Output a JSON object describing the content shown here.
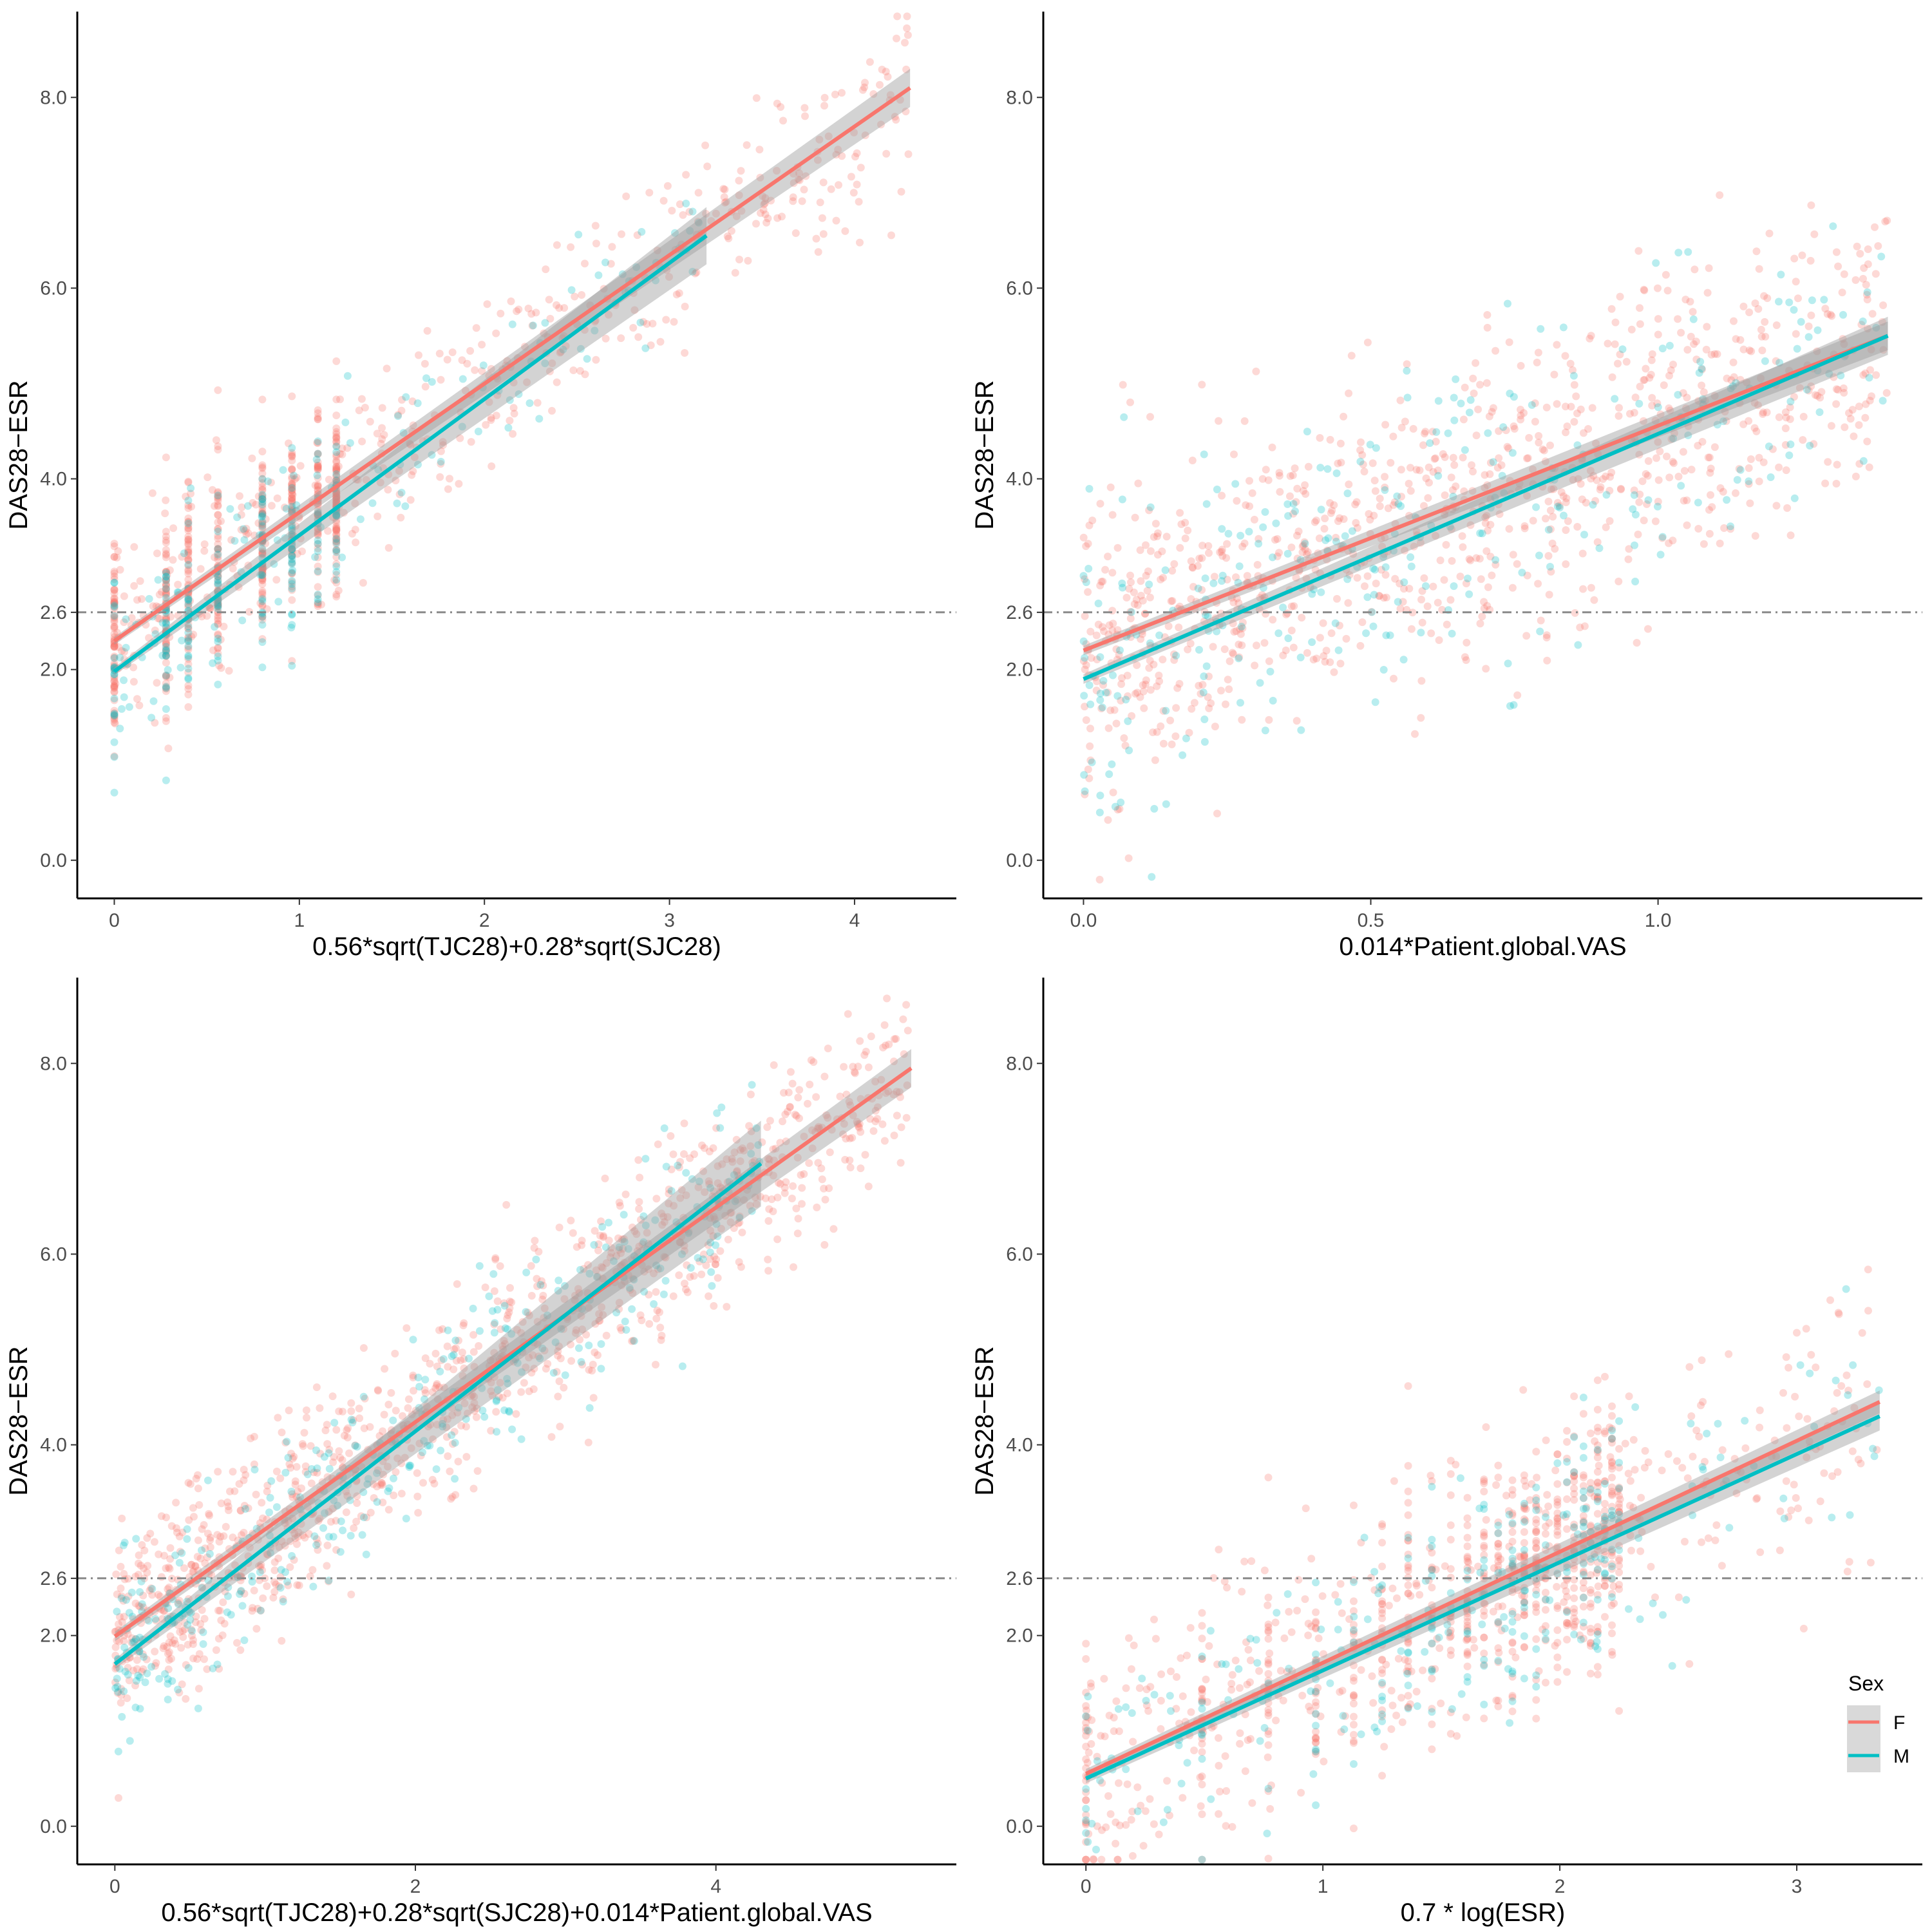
{
  "chart_data": [
    {
      "type": "scatter",
      "title": "",
      "xlabel": "0.56*sqrt(TJC28)+0.28*sqrt(SJC28)",
      "ylabel": "DAS28−ESR",
      "xlim": [
        -0.2,
        4.55
      ],
      "ylim": [
        -0.4,
        8.9
      ],
      "xticks": [
        0,
        1,
        2,
        3,
        4
      ],
      "xtick_labels": [
        "0",
        "1",
        "2",
        "3",
        "4"
      ],
      "yticks": [
        0.0,
        2.0,
        2.6,
        4.0,
        6.0,
        8.0
      ],
      "ytick_labels": [
        "0.0",
        "2.0",
        "2.6",
        "4.0",
        "6.0",
        "8.0"
      ],
      "reference_line": {
        "y": 2.6,
        "style": "dash-dot"
      },
      "series": [
        {
          "name": "F",
          "color": "#F8766D",
          "fit": {
            "x": [
              0,
              4.3
            ],
            "y": [
              2.3,
              8.1
            ]
          },
          "band": [
            0.04,
            0.2
          ],
          "cloud": {
            "x_discrete": [
              0,
              0.28,
              0.4,
              0.56,
              0.8,
              0.96,
              1.1,
              1.2
            ],
            "x_range": [
              0,
              4.3
            ],
            "resid_sd": 0.5,
            "n": 1000,
            "seed": 11
          }
        },
        {
          "name": "M",
          "color": "#00BFC4",
          "fit": {
            "x": [
              0,
              3.2
            ],
            "y": [
              1.98,
              6.55
            ]
          },
          "band": [
            0.04,
            0.3
          ],
          "cloud": {
            "x_discrete": [
              0,
              0.28,
              0.4,
              0.56,
              0.8,
              0.96,
              1.1,
              1.2
            ],
            "x_range": [
              0,
              3.2
            ],
            "resid_sd": 0.5,
            "n": 300,
            "seed": 12
          }
        }
      ]
    },
    {
      "type": "scatter",
      "title": "",
      "xlabel": "0.014*Patient.global.VAS",
      "ylabel": "DAS28−ESR",
      "xlim": [
        -0.07,
        1.46
      ],
      "ylim": [
        -0.4,
        8.9
      ],
      "xticks": [
        0.0,
        0.5,
        1.0
      ],
      "xtick_labels": [
        "0.0",
        "0.5",
        "1.0"
      ],
      "yticks": [
        0.0,
        2.0,
        2.6,
        4.0,
        6.0,
        8.0
      ],
      "ytick_labels": [
        "0.0",
        "2.0",
        "2.6",
        "4.0",
        "6.0",
        "8.0"
      ],
      "reference_line": {
        "y": 2.6,
        "style": "dash-dot"
      },
      "series": [
        {
          "name": "F",
          "color": "#F8766D",
          "fit": {
            "x": [
              0,
              1.4
            ],
            "y": [
              2.2,
              5.5
            ]
          },
          "band": [
            0.05,
            0.15
          ],
          "cloud": {
            "x_discrete": [],
            "x_range": [
              0,
              1.4
            ],
            "resid_sd": 0.8,
            "n": 1000,
            "seed": 21
          }
        },
        {
          "name": "M",
          "color": "#00BFC4",
          "fit": {
            "x": [
              0,
              1.4
            ],
            "y": [
              1.9,
              5.5
            ]
          },
          "band": [
            0.05,
            0.2
          ],
          "cloud": {
            "x_discrete": [],
            "x_range": [
              0,
              1.4
            ],
            "resid_sd": 0.8,
            "n": 300,
            "seed": 22
          }
        }
      ]
    },
    {
      "type": "scatter",
      "title": "",
      "xlabel": "0.56*sqrt(TJC28)+0.28*sqrt(SJC28)+0.014*Patient.global.VAS",
      "ylabel": "DAS28−ESR",
      "xlim": [
        -0.25,
        5.6
      ],
      "ylim": [
        -0.4,
        8.9
      ],
      "xticks": [
        0,
        2,
        4
      ],
      "xtick_labels": [
        "0",
        "2",
        "4"
      ],
      "yticks": [
        0.0,
        2.0,
        2.6,
        4.0,
        6.0,
        8.0
      ],
      "ytick_labels": [
        "0.0",
        "2.0",
        "2.6",
        "4.0",
        "6.0",
        "8.0"
      ],
      "reference_line": {
        "y": 2.6,
        "style": "dash-dot"
      },
      "series": [
        {
          "name": "F",
          "color": "#F8766D",
          "fit": {
            "x": [
              0,
              5.3
            ],
            "y": [
              1.99,
              7.95
            ]
          },
          "band": [
            0.05,
            0.2
          ],
          "cloud": {
            "x_discrete": [],
            "x_range": [
              0,
              5.3
            ],
            "resid_sd": 0.5,
            "n": 1100,
            "seed": 31
          }
        },
        {
          "name": "M",
          "color": "#00BFC4",
          "fit": {
            "x": [
              0,
              4.3
            ],
            "y": [
              1.7,
              6.95
            ]
          },
          "band": [
            0.05,
            0.45
          ],
          "cloud": {
            "x_discrete": [],
            "x_range": [
              0,
              4.3
            ],
            "resid_sd": 0.5,
            "n": 350,
            "seed": 32
          }
        }
      ]
    },
    {
      "type": "scatter",
      "title": "",
      "xlabel": "0.7 * log(ESR)",
      "ylabel": "DAS28−ESR",
      "xlim": [
        -0.18,
        3.53
      ],
      "ylim": [
        -0.4,
        8.9
      ],
      "xticks": [
        0,
        1,
        2,
        3
      ],
      "xtick_labels": [
        "0",
        "1",
        "2",
        "3"
      ],
      "yticks": [
        0.0,
        2.0,
        2.6,
        4.0,
        6.0,
        8.0
      ],
      "ytick_labels": [
        "0.0",
        "2.0",
        "2.6",
        "4.0",
        "6.0",
        "8.0"
      ],
      "reference_line": {
        "y": 2.6,
        "style": "dash-dot"
      },
      "series": [
        {
          "name": "F",
          "color": "#F8766D",
          "fit": {
            "x": [
              0,
              3.35
            ],
            "y": [
              0.55,
              4.45
            ]
          },
          "band": [
            0.05,
            0.12
          ],
          "cloud": {
            "x_discrete": [
              0,
              0.49,
              0.77,
              0.97,
              1.13,
              1.25,
              1.36,
              1.46,
              1.54,
              1.61,
              1.68,
              1.74,
              1.8,
              1.85,
              1.9,
              1.94,
              1.99,
              2.03,
              2.06,
              2.1,
              2.13,
              2.16,
              2.19,
              2.22,
              2.25
            ],
            "x_range": [
              0,
              3.35
            ],
            "resid_sd": 0.7,
            "n": 1000,
            "seed": 41
          }
        },
        {
          "name": "M",
          "color": "#00BFC4",
          "fit": {
            "x": [
              0,
              3.35
            ],
            "y": [
              0.5,
              4.3
            ]
          },
          "band": [
            0.05,
            0.15
          ],
          "cloud": {
            "x_discrete": [
              0,
              0.49,
              0.77,
              0.97,
              1.13,
              1.25,
              1.36,
              1.46,
              1.54,
              1.61,
              1.68,
              1.74,
              1.8,
              1.85,
              1.9,
              1.94,
              1.99,
              2.03,
              2.06,
              2.1,
              2.13,
              2.16,
              2.19,
              2.22,
              2.25
            ],
            "x_range": [
              0,
              3.35
            ],
            "resid_sd": 0.7,
            "n": 300,
            "seed": 42
          }
        }
      ]
    }
  ],
  "legend": {
    "title": "Sex",
    "items": [
      {
        "label": "F",
        "color": "#F8766D"
      },
      {
        "label": "M",
        "color": "#00BFC4"
      }
    ]
  }
}
